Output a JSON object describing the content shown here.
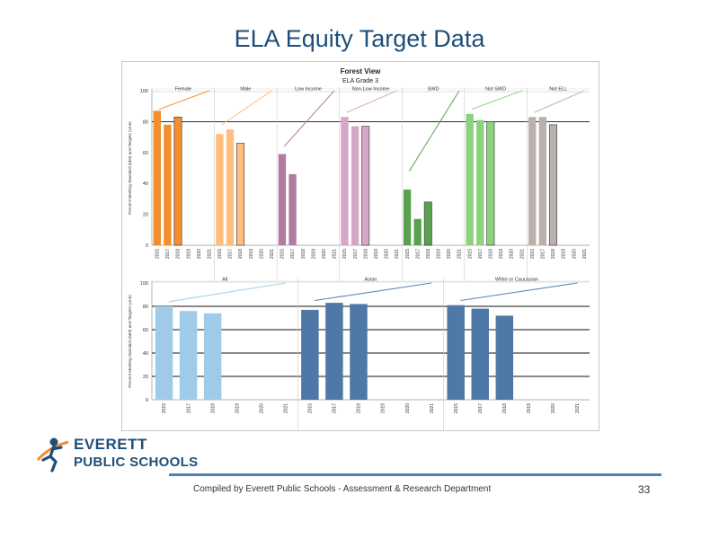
{
  "slide": {
    "title": "ELA Equity Target Data",
    "footer": "Compiled  by Everett Public Schools - Assessment & Research Department",
    "page_number": "33",
    "logo_line1": "EVERETT",
    "logo_line2": "PUBLIC SCHOOLS"
  },
  "chart_data": [
    {
      "type": "bar",
      "title": "Forest View",
      "subtitle": "ELA Grade 3",
      "ylabel": "Percent Meeting Standard (Met) and Targets (Line)",
      "ylim": [
        0,
        100
      ],
      "yticks": [
        0,
        20,
        40,
        60,
        80,
        100
      ],
      "reference_line": 80,
      "categories": [
        "2015",
        "2017",
        "2018",
        "2019",
        "2020",
        "2021"
      ],
      "series": [
        {
          "name": "Female",
          "color": "#f28e2b",
          "values": [
            87,
            78,
            83,
            null,
            null,
            null
          ],
          "target_start": 88,
          "target_end": 100
        },
        {
          "name": "Male",
          "color": "#ffbe7d",
          "values": [
            72,
            75,
            66,
            null,
            null,
            null
          ],
          "target_start": 78,
          "target_end": 100
        },
        {
          "name": "Low Income",
          "color": "#b07aa1",
          "values": [
            59,
            46,
            null,
            null,
            null,
            null
          ],
          "target_start": 64,
          "target_end": 100
        },
        {
          "name": "Non-Low Income",
          "color": "#d4a6c8",
          "values": [
            83,
            77,
            77,
            null,
            null,
            null
          ],
          "target_start": 86,
          "target_end": 100
        },
        {
          "name": "SWD",
          "color": "#59a14f",
          "values": [
            36,
            17,
            28,
            null,
            null,
            null
          ],
          "target_start": 48,
          "target_end": 100
        },
        {
          "name": "Not SWD",
          "color": "#8cd17d",
          "values": [
            85,
            81,
            80,
            null,
            null,
            null
          ],
          "target_start": 88,
          "target_end": 100
        },
        {
          "name": "Not ELL",
          "color": "#bab0ac",
          "values": [
            83,
            83,
            78,
            null,
            null,
            null
          ],
          "target_start": 86,
          "target_end": 100
        }
      ]
    },
    {
      "type": "bar",
      "ylabel": "Percent Meeting Standard (Met) and Targets (Line)",
      "ylim": [
        0,
        100
      ],
      "yticks": [
        0,
        20,
        40,
        60,
        80,
        100
      ],
      "gridlines": [
        20,
        40,
        60,
        80
      ],
      "categories": [
        "2015",
        "2017",
        "2018",
        "2019",
        "2020",
        "2021"
      ],
      "series": [
        {
          "name": "All",
          "color": "#a0cbe8",
          "values": [
            80,
            76,
            74,
            null,
            null,
            null
          ],
          "target_start": 84,
          "target_end": 100
        },
        {
          "name": "Asian",
          "color": "#4e79a7",
          "values": [
            77,
            83,
            82,
            null,
            null,
            null
          ],
          "target_start": 85,
          "target_end": 100
        },
        {
          "name": "White or Caucasian",
          "color": "#4e79a7",
          "values": [
            81,
            78,
            72,
            null,
            null,
            null
          ],
          "target_start": 85,
          "target_end": 100
        }
      ]
    }
  ]
}
